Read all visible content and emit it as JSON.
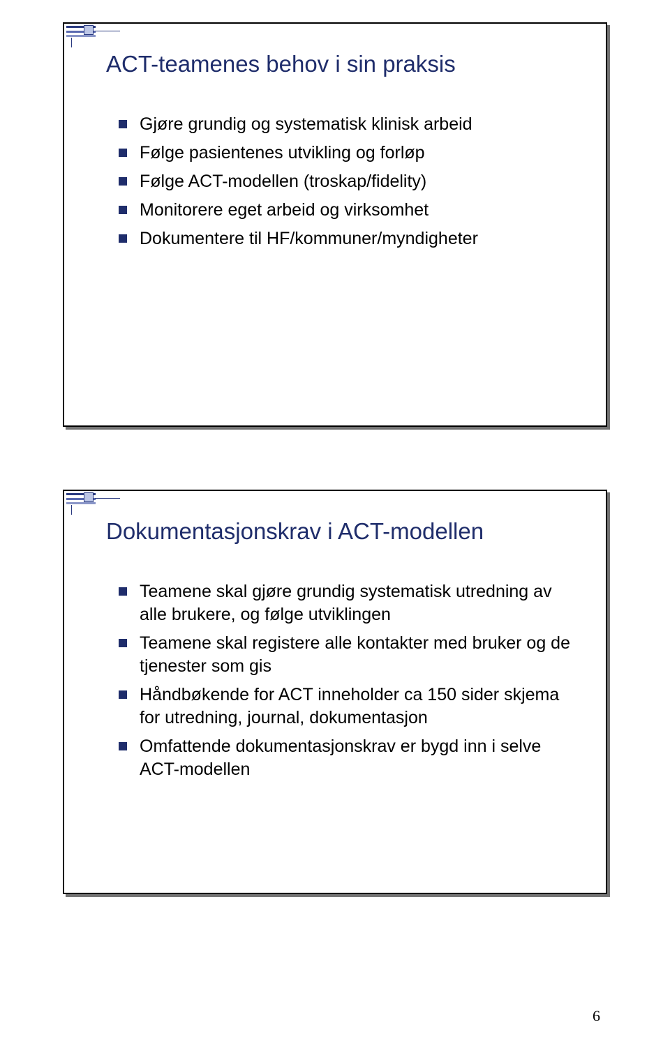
{
  "page_number": "6",
  "colors": {
    "title": "#1f2d6b",
    "bullet": "#1f2d6b",
    "body_text": "#000000",
    "slide_border": "#000000",
    "background": "#ffffff"
  },
  "slide1": {
    "title": "ACT-teamenes behov i sin praksis",
    "bullets": [
      "Gjøre grundig og systematisk klinisk arbeid",
      "Følge pasientenes utvikling og forløp",
      "Følge ACT-modellen (troskap/fidelity)",
      "Monitorere eget arbeid og virksomhet",
      "Dokumentere til HF/kommuner/myndigheter"
    ]
  },
  "slide2": {
    "title": "Dokumentasjonskrav i ACT-modellen",
    "bullets": [
      "Teamene skal gjøre grundig systematisk utredning av alle brukere, og følge utviklingen",
      "Teamene skal registere alle kontakter med bruker og de tjenester som gis",
      "Håndbøkende for ACT inneholder ca 150 sider skjema for utredning, journal, dokumentasjon",
      "Omfattende dokumentasjonskrav er bygd inn i selve ACT-modellen"
    ]
  }
}
